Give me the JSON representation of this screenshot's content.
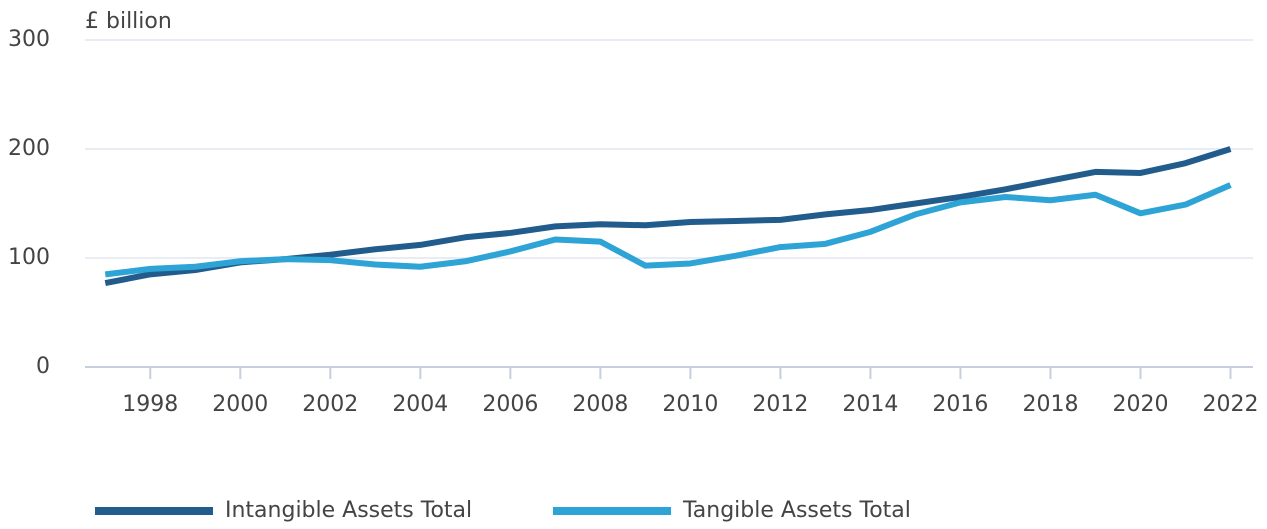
{
  "chart_data": {
    "type": "line",
    "y_label": "£ billion",
    "x": [
      1997,
      1998,
      1999,
      2000,
      2001,
      2002,
      2003,
      2004,
      2005,
      2006,
      2007,
      2008,
      2009,
      2010,
      2011,
      2012,
      2013,
      2014,
      2015,
      2016,
      2017,
      2018,
      2019,
      2020,
      2021,
      2022
    ],
    "series": [
      {
        "name": "Intangible Assets Total",
        "color": "#215c8d",
        "values": [
          77,
          85,
          89,
          96,
          99,
          103,
          108,
          112,
          119,
          123,
          129,
          131,
          130,
          133,
          134,
          135,
          140,
          144,
          150,
          156,
          163,
          171,
          179,
          178,
          187,
          200
        ]
      },
      {
        "name": "Tangible Assets Total",
        "color": "#2ea3d5",
        "values": [
          85,
          90,
          92,
          97,
          99,
          98,
          94,
          92,
          97,
          106,
          117,
          115,
          93,
          95,
          102,
          110,
          113,
          124,
          140,
          151,
          156,
          153,
          158,
          141,
          149,
          167
        ]
      }
    ],
    "xlim": [
      1996.55,
      2022.5
    ],
    "xticks": [
      1998,
      2000,
      2002,
      2004,
      2006,
      2008,
      2010,
      2012,
      2014,
      2016,
      2018,
      2020,
      2022
    ],
    "ylim": [
      0,
      300
    ],
    "yticks": [
      0,
      100,
      200,
      300
    ],
    "grid": true,
    "legend": "bottom"
  }
}
